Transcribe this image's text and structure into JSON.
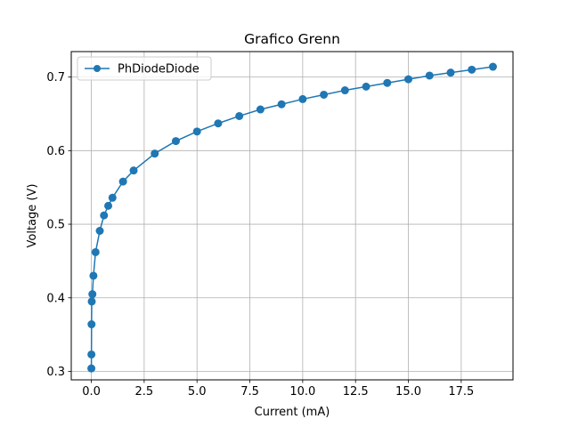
{
  "chart_data": {
    "type": "line",
    "title": "Grafico Grenn",
    "xlabel": "Current (mA)",
    "ylabel": "Voltage (V)",
    "xlim": [
      -0.95,
      19.95
    ],
    "ylim": [
      0.2885,
      0.7346
    ],
    "xticks": [
      0,
      2.5,
      5,
      7.5,
      10,
      12.5,
      15,
      17.5
    ],
    "xtick_labels": [
      "0.0",
      "2.5",
      "5.0",
      "7.5",
      "10.0",
      "12.5",
      "15.0",
      "17.5"
    ],
    "yticks": [
      0.3,
      0.4,
      0.5,
      0.6,
      0.7
    ],
    "ytick_labels": [
      "0.3",
      "0.4",
      "0.5",
      "0.6",
      "0.7"
    ],
    "grid": true,
    "legend_position": "top-left",
    "series": [
      {
        "name": "PhDiodeDiode",
        "color": "#1f77b4",
        "marker": "circle",
        "x": [
          0.001,
          0.005,
          0.01,
          0.02,
          0.05,
          0.1,
          0.2,
          0.4,
          0.6,
          0.8,
          1.0,
          1.5,
          2.0,
          3.0,
          4.0,
          5.0,
          6.0,
          7.0,
          8.0,
          9.0,
          10.0,
          11.0,
          12.0,
          13.0,
          14.0,
          15.0,
          16.0,
          17.0,
          18.0,
          19.0
        ],
        "y": [
          0.304,
          0.323,
          0.364,
          0.395,
          0.405,
          0.43,
          0.462,
          0.491,
          0.512,
          0.525,
          0.536,
          0.558,
          0.573,
          0.596,
          0.613,
          0.626,
          0.637,
          0.647,
          0.656,
          0.663,
          0.67,
          0.676,
          0.682,
          0.687,
          0.692,
          0.697,
          0.702,
          0.706,
          0.71,
          0.714
        ]
      }
    ]
  }
}
